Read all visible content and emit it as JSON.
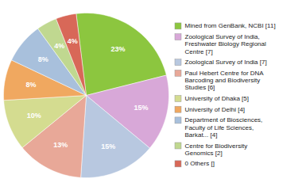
{
  "chart_data": {
    "type": "pie",
    "categories": [
      "Mined from GenBank, NCBI [11]",
      "Zoological Survey of India,\nFreshwater Biology Regional\nCentre [7]",
      "Zoological Survey of India [7]",
      "Paul Hebert Centre for DNA\nBarcoding and Biodiversity\nStudies [6]",
      "University of Dhaka [5]",
      "University of Delhi [4]",
      "Department of Biosciences,\nFaculty of Life Sciences,\nBarkat... [4]",
      "Centre for Biodiversity\nGenomics [2]",
      "0 Others []"
    ],
    "values": [
      23,
      15,
      15,
      13,
      10,
      8,
      8,
      4,
      4
    ],
    "value_labels": [
      "23%",
      "15%",
      "15%",
      "13%",
      "10%",
      "8%",
      "8%",
      "4%",
      "4%"
    ],
    "colors": [
      "#8cc63f",
      "#d8a8d8",
      "#b8c8e0",
      "#e8a898",
      "#d4dc90",
      "#f0a860",
      "#a8c0dc",
      "#c0d890",
      "#d86858"
    ],
    "data_labels": true,
    "legend": "right"
  }
}
